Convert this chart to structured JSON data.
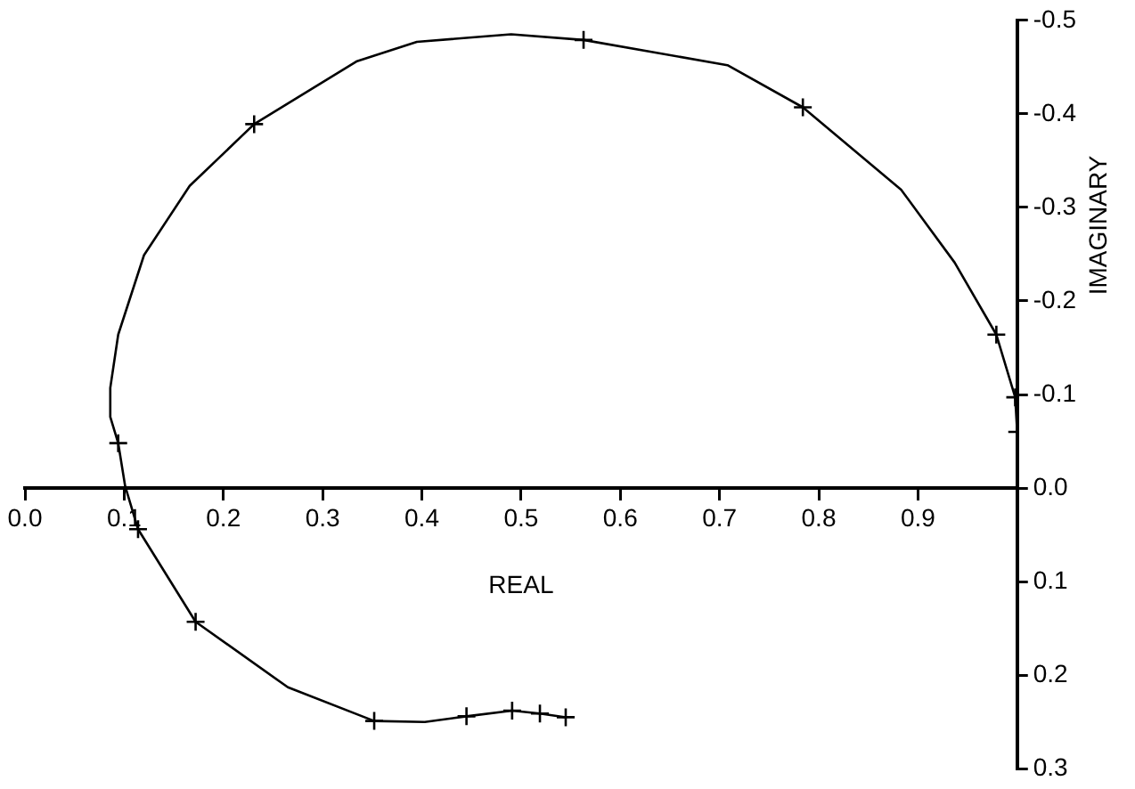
{
  "chart_data": {
    "type": "line",
    "xlabel": "REAL",
    "ylabel": "IMAGINARY",
    "series": [
      {
        "type": "line",
        "color": "#000000",
        "marker": "none",
        "x": [
          1.0,
          0.998,
          0.979,
          0.937,
          0.883,
          0.784,
          0.708,
          0.563,
          0.49,
          0.395,
          0.334,
          0.231,
          0.166,
          0.12,
          0.094,
          0.086,
          0.086,
          0.094,
          0.101,
          0.114,
          0.172,
          0.265,
          0.352,
          0.403,
          0.445,
          0.491,
          0.519,
          0.545
        ],
        "values": [
          -0.06,
          -0.097,
          -0.164,
          -0.241,
          -0.319,
          -0.407,
          -0.452,
          -0.479,
          -0.485,
          -0.477,
          -0.456,
          -0.389,
          -0.323,
          -0.249,
          -0.164,
          -0.107,
          -0.076,
          -0.048,
          -0.002,
          0.044,
          0.143,
          0.213,
          0.249,
          0.25,
          0.244,
          0.238,
          0.241,
          0.245
        ]
      },
      {
        "type": "scatter",
        "color": "#000000",
        "marker": "cross",
        "x": [
          1.0,
          0.998,
          0.979,
          0.784,
          0.563,
          0.231,
          0.094,
          0.114,
          0.172,
          0.352,
          0.445,
          0.491,
          0.519,
          0.545
        ],
        "values": [
          -0.06,
          -0.097,
          -0.164,
          -0.407,
          -0.479,
          -0.389,
          -0.048,
          0.044,
          0.143,
          0.249,
          0.244,
          0.238,
          0.241,
          0.245
        ]
      }
    ],
    "xlim": [
      0.0,
      1.0
    ],
    "xticks": [
      {
        "value": 0,
        "label": "0.0"
      },
      {
        "value": 0.1,
        "label": "0.1"
      },
      {
        "value": 0.2,
        "label": "0.2"
      },
      {
        "value": 0.3,
        "label": "0.3"
      },
      {
        "value": 0.4,
        "label": "0.4"
      },
      {
        "value": 0.5,
        "label": "0.5"
      },
      {
        "value": 0.6,
        "label": "0.6"
      },
      {
        "value": 0.7,
        "label": "0.7"
      },
      {
        "value": 0.8,
        "label": "0.8"
      },
      {
        "value": 0.9,
        "label": "0.9"
      },
      {
        "value": 1.0,
        "label": null
      }
    ],
    "ylim": [
      0.3,
      -0.5
    ],
    "yticks": [
      {
        "value": -0.5,
        "label": "-0.5"
      },
      {
        "value": -0.4,
        "label": "-0.4"
      },
      {
        "value": -0.3,
        "label": "-0.3"
      },
      {
        "value": -0.2,
        "label": "-0.2"
      },
      {
        "value": -0.1,
        "label": "-0.1"
      },
      {
        "value": 0,
        "label": "0.0"
      },
      {
        "value": 0.1,
        "label": "0.1"
      },
      {
        "value": 0.2,
        "label": "0.2"
      },
      {
        "value": 0.3,
        "label": "0.3"
      }
    ],
    "grid": false,
    "legend": false
  }
}
